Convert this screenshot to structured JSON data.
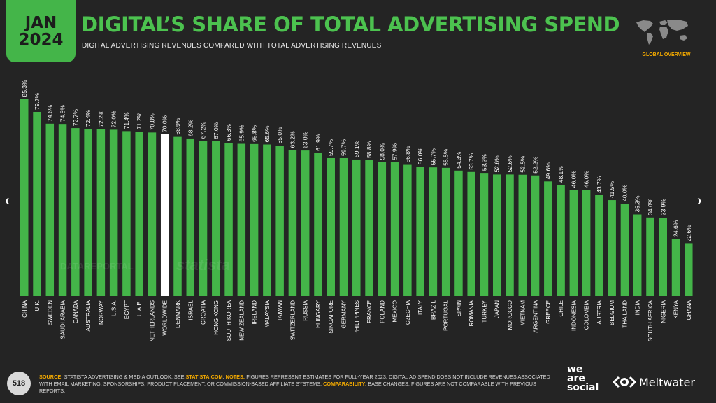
{
  "badge": {
    "month": "JAN",
    "year": "2024"
  },
  "header": {
    "title": "DIGITAL’S SHARE OF TOTAL ADVERTISING SPEND",
    "subtitle": "DIGITAL ADVERTISING REVENUES COMPARED WITH TOTAL ADVERTISING REVENUES",
    "section": "GLOBAL OVERVIEW"
  },
  "nav": {
    "prev_icon": "‹",
    "next_icon": "›"
  },
  "watermarks": {
    "datareportal": "DATAREPORTAL",
    "statista": "statista"
  },
  "colors": {
    "bar": "#44b549",
    "highlight": "#ffffff",
    "accent": "#f2a900",
    "background": "#242424"
  },
  "chart_data": {
    "type": "bar",
    "categories": [
      "CHINA",
      "U.K.",
      "SWEDEN",
      "SAUDI ARABIA",
      "CANADA",
      "AUSTRALIA",
      "NORWAY",
      "U.S.A.",
      "EGYPT",
      "U.A.E.",
      "NETHERLANDS",
      "WORLDWIDE",
      "DENMARK",
      "ISRAEL",
      "CROATIA",
      "HONG KONG",
      "SOUTH KOREA",
      "NEW ZEALAND",
      "IRELAND",
      "MALAYSIA",
      "TAIWAN",
      "SWITZERLAND",
      "RUSSIA",
      "HUNGARY",
      "SINGAPORE",
      "GERMANY",
      "PHILIPPINES",
      "FRANCE",
      "POLAND",
      "MEXICO",
      "CZECHIA",
      "ITALY",
      "BRAZIL",
      "PORTUGAL",
      "SPAIN",
      "ROMANIA",
      "TURKEY",
      "JAPAN",
      "MOROCCO",
      "VIETNAM",
      "ARGENTINA",
      "GREECE",
      "CHILE",
      "INDONESIA",
      "COLOMBIA",
      "AUSTRIA",
      "BELGIUM",
      "THAILAND",
      "INDIA",
      "SOUTH AFRICA",
      "NIGERIA",
      "KENYA",
      "GHANA"
    ],
    "values": [
      85.3,
      79.7,
      74.6,
      74.5,
      72.7,
      72.4,
      72.2,
      72.0,
      71.4,
      71.2,
      70.8,
      70.0,
      68.9,
      68.2,
      67.2,
      67.0,
      66.3,
      65.9,
      65.8,
      65.6,
      65.0,
      63.2,
      63.0,
      61.9,
      59.7,
      59.7,
      59.1,
      58.8,
      58.0,
      57.9,
      56.8,
      56.0,
      55.7,
      55.5,
      54.3,
      53.7,
      53.3,
      52.6,
      52.6,
      52.5,
      52.2,
      49.6,
      48.1,
      46.0,
      46.0,
      43.7,
      41.5,
      40.0,
      35.3,
      34.0,
      33.9,
      24.6,
      22.6
    ],
    "labels": [
      "85.3%",
      "79.7%",
      "74.6%",
      "74.5%",
      "72.7%",
      "72.4%",
      "72.2%",
      "72.0%",
      "71.4%",
      "71.2%",
      "70.8%",
      "70.0%",
      "68.9%",
      "68.2%",
      "67.2%",
      "67.0%",
      "66.3%",
      "65.9%",
      "65.8%",
      "65.6%",
      "65.0%",
      "63.2%",
      "63.0%",
      "61.9%",
      "59.7%",
      "59.7%",
      "59.1%",
      "58.8%",
      "58.0%",
      "57.9%",
      "56.8%",
      "56.0%",
      "55.7%",
      "55.5%",
      "54.3%",
      "53.7%",
      "53.3%",
      "52.6%",
      "52.6%",
      "52.5%",
      "52.2%",
      "49.6%",
      "48.1%",
      "46.0%",
      "46.0%",
      "43.7%",
      "41.5%",
      "40.0%",
      "35.3%",
      "34.0%",
      "33.9%",
      "24.6%",
      "22.6%"
    ],
    "highlight": "WORLDWIDE",
    "ylim": [
      0,
      100
    ],
    "grid": false
  },
  "footer": {
    "page": "518",
    "source_key": "SOURCE:",
    "source_text": " STATISTA ADVERTISING & MEDIA OUTLOOK. SEE ",
    "source_link": "STATISTA.COM",
    "source_end": ". ",
    "notes_key": "NOTES:",
    "notes_text": " FIGURES REPRESENT ESTIMATES FOR FULL-YEAR 2023. DIGITAL AD SPEND DOES NOT INCLUDE REVENUES ASSOCIATED WITH EMAIL MARKETING, SPONSORSHIPS, PRODUCT PLACEMENT, OR COMMISSION-BASED AFFILIATE SYSTEMS. ",
    "comparability_key": "COMPARABILITY:",
    "comparability_text": " BASE CHANGES. FIGURES ARE NOT COMPARABLE WITH PREVIOUS REPORTS.",
    "brand_we": "we",
    "brand_are": "are",
    "brand_social": "social",
    "brand_meltwater": "Meltwater"
  }
}
